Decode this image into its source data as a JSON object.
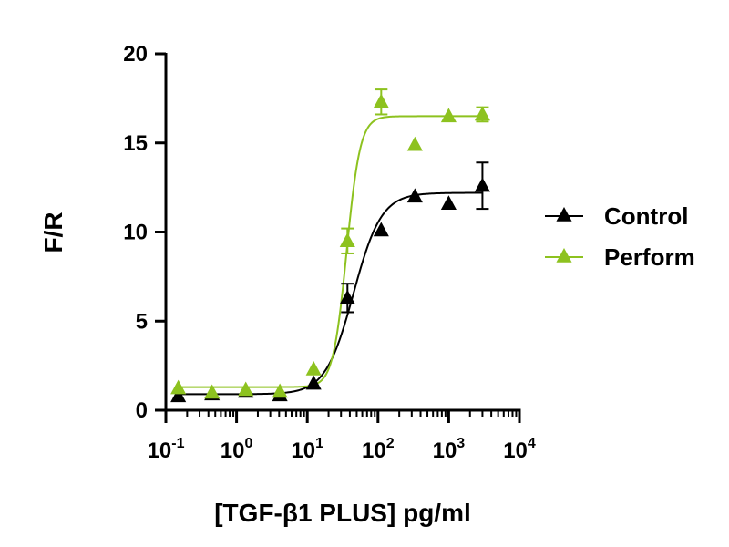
{
  "chart_data": {
    "type": "scatter",
    "title": "",
    "xlabel": "[TGF-β1 PLUS] pg/ml",
    "ylabel": "F/R",
    "xscale": "log",
    "xlim": [
      0.1,
      10000
    ],
    "ylim": [
      0,
      20
    ],
    "x_tick_labels": [
      {
        "value": 0.1,
        "base": "10",
        "exp": "-1"
      },
      {
        "value": 1,
        "base": "10",
        "exp": "0"
      },
      {
        "value": 10,
        "base": "10",
        "exp": "1"
      },
      {
        "value": 100,
        "base": "10",
        "exp": "2"
      },
      {
        "value": 1000,
        "base": "10",
        "exp": "3"
      },
      {
        "value": 10000,
        "base": "10",
        "exp": "4"
      }
    ],
    "y_ticks": [
      0,
      5,
      10,
      15,
      20
    ],
    "y_tick_labels": [
      "0",
      "5",
      "10",
      "15",
      "20"
    ],
    "grid": false,
    "legend_position": "right",
    "series": [
      {
        "name": "Control",
        "color": "#000000",
        "marker": "triangle",
        "x": [
          0.15,
          0.45,
          1.35,
          4.1,
          12.3,
          37,
          111,
          333,
          1000,
          3000
        ],
        "y": [
          0.8,
          0.9,
          1.05,
          0.85,
          1.5,
          6.3,
          10.1,
          12.0,
          11.6,
          12.6
        ],
        "error": [
          0,
          0,
          0,
          0,
          0,
          0.8,
          0,
          0,
          0,
          1.3
        ]
      },
      {
        "name": "Perform",
        "color": "#8dc21f",
        "marker": "triangle",
        "x": [
          0.15,
          0.45,
          1.35,
          4.1,
          12.3,
          37,
          111,
          333,
          1000,
          3000
        ],
        "y": [
          1.25,
          1.0,
          1.15,
          1.05,
          2.3,
          9.5,
          17.3,
          14.9,
          16.5,
          16.6
        ],
        "error": [
          0,
          0,
          0,
          0,
          0,
          0.7,
          0.7,
          0,
          0,
          0.4
        ]
      }
    ],
    "fit_curves": [
      {
        "series": "Control",
        "bottom": 0.9,
        "top": 12.2,
        "ec50": 45,
        "hill": 2.2
      },
      {
        "series": "Perform",
        "bottom": 1.3,
        "top": 16.5,
        "ec50": 36,
        "hill": 4.5
      }
    ]
  }
}
